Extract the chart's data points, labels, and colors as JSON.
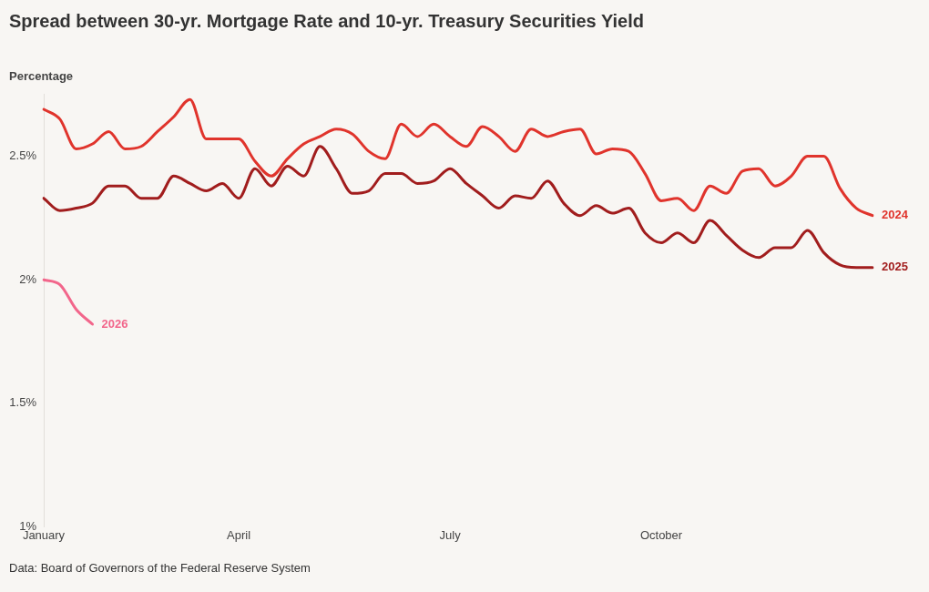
{
  "chart_data": {
    "type": "line",
    "title": "Spread between 30-yr. Mortgage Rate and 10-yr. Treasury Securities Yield",
    "ylabel": "Percentage",
    "annotations": [
      "Data: Board of Governors of the Federal Reserve System"
    ],
    "categories": [
      "January",
      null,
      null,
      null,
      null,
      null,
      null,
      null,
      null,
      null,
      null,
      null,
      "April",
      null,
      null,
      null,
      null,
      null,
      null,
      null,
      null,
      null,
      null,
      null,
      null,
      "July",
      null,
      null,
      null,
      null,
      null,
      null,
      null,
      null,
      null,
      null,
      null,
      null,
      "October",
      null,
      null,
      null,
      null,
      null,
      null,
      null,
      null,
      null,
      null,
      null,
      null,
      null
    ],
    "ylim": [
      1,
      2.75
    ],
    "yticks": [
      {
        "value": 1,
        "label": "1%"
      },
      {
        "value": 1.5,
        "label": "1.5%"
      },
      {
        "value": 2,
        "label": "2%"
      },
      {
        "value": 2.5,
        "label": "2.5%"
      }
    ],
    "grid": false,
    "legend": false,
    "marker": "none",
    "series": [
      {
        "name": "2024",
        "color": "#e0342c",
        "values": [
          2.69,
          2.65,
          2.53,
          2.55,
          2.6,
          2.53,
          2.54,
          2.6,
          2.66,
          2.73,
          2.57,
          2.57,
          2.57,
          2.48,
          2.42,
          2.49,
          2.55,
          2.58,
          2.61,
          2.59,
          2.52,
          2.49,
          2.63,
          2.58,
          2.63,
          2.58,
          2.54,
          2.62,
          2.58,
          2.52,
          2.61,
          2.58,
          2.6,
          2.61,
          2.51,
          2.53,
          2.52,
          2.43,
          2.32,
          2.33,
          2.28,
          2.38,
          2.35,
          2.44,
          2.45,
          2.38,
          2.42,
          2.5,
          2.5,
          2.37,
          2.29,
          2.26
        ]
      },
      {
        "name": "2025",
        "color": "#a11d1d",
        "values": [
          2.33,
          2.28,
          2.29,
          2.31,
          2.38,
          2.38,
          2.33,
          2.33,
          2.42,
          2.39,
          2.36,
          2.39,
          2.33,
          2.45,
          2.38,
          2.46,
          2.42,
          2.54,
          2.45,
          2.35,
          2.36,
          2.43,
          2.43,
          2.39,
          2.4,
          2.45,
          2.39,
          2.34,
          2.29,
          2.34,
          2.33,
          2.4,
          2.31,
          2.26,
          2.3,
          2.27,
          2.29,
          2.19,
          2.15,
          2.19,
          2.15,
          2.24,
          2.18,
          2.12,
          2.09,
          2.13,
          2.13,
          2.2,
          2.11,
          2.06,
          2.05,
          2.05
        ]
      },
      {
        "name": "2026",
        "color": "#f2668b",
        "values": [
          2.0,
          1.98,
          1.88,
          1.82,
          null,
          null,
          null,
          null,
          null,
          null,
          null,
          null,
          null,
          null,
          null,
          null,
          null,
          null,
          null,
          null,
          null,
          null,
          null,
          null,
          null,
          null,
          null,
          null,
          null,
          null,
          null,
          null,
          null,
          null,
          null,
          null,
          null,
          null,
          null,
          null,
          null,
          null,
          null,
          null,
          null,
          null,
          null,
          null,
          null,
          null,
          null,
          null
        ]
      }
    ]
  }
}
